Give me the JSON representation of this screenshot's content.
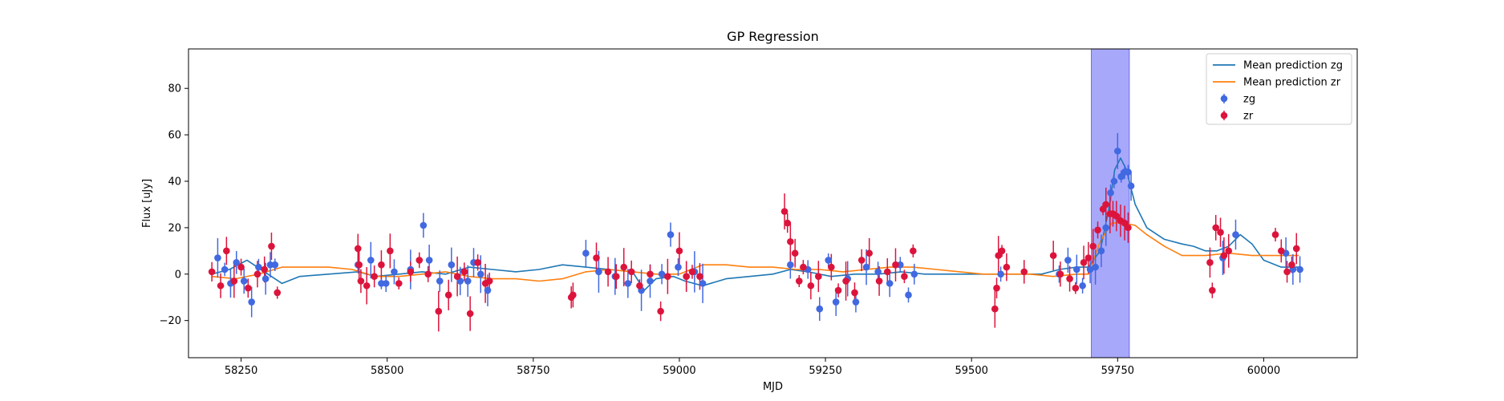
{
  "chart_data": {
    "type": "scatter",
    "title": "GP Regression",
    "xlabel": "MJD",
    "ylabel": "Flux [uJy]",
    "xlim": [
      58160,
      60160
    ],
    "ylim": [
      -36,
      97
    ],
    "xticks": [
      58250,
      58500,
      58750,
      59000,
      59250,
      59500,
      59750,
      60000
    ],
    "yticks": [
      -20,
      0,
      20,
      40,
      60,
      80
    ],
    "grid": false,
    "legend_position": "top-right",
    "highlight_span": {
      "x0": 59705,
      "x1": 59770,
      "color": "#a8a8fb"
    },
    "lines": [
      {
        "name": "Mean prediction zg",
        "color": "#1f77b4",
        "x": [
          58200,
          58230,
          58260,
          58290,
          58320,
          58350,
          58400,
          58450,
          58480,
          58520,
          58560,
          58600,
          58640,
          58680,
          58720,
          58760,
          58800,
          58840,
          58880,
          58920,
          58940,
          58960,
          58990,
          59010,
          59040,
          59080,
          59120,
          59160,
          59190,
          59220,
          59260,
          59300,
          59340,
          59380,
          59420,
          59460,
          59500,
          59540,
          59580,
          59620,
          59650,
          59680,
          59700,
          59720,
          59735,
          59745,
          59755,
          59765,
          59780,
          59800,
          59830,
          59860,
          59880,
          59900,
          59920,
          59940,
          59960,
          59980,
          60000,
          60030,
          60060
        ],
        "y": [
          0,
          2,
          6,
          1,
          -4,
          -1,
          0,
          1,
          -1,
          0,
          1,
          0,
          3,
          2,
          1,
          2,
          4,
          3,
          2,
          1,
          -7,
          -2,
          -1,
          -3,
          -5,
          -2,
          -1,
          0,
          2,
          1,
          -1,
          0,
          0,
          1,
          0,
          0,
          0,
          0,
          0,
          0,
          2,
          3,
          3,
          10,
          28,
          45,
          50,
          45,
          30,
          20,
          15,
          13,
          12,
          10,
          10,
          12,
          17,
          13,
          6,
          3,
          3
        ]
      },
      {
        "name": "Mean prediction zr",
        "color": "#ff7f0e",
        "x": [
          58200,
          58240,
          58280,
          58320,
          58360,
          58400,
          58440,
          58480,
          58520,
          58560,
          58600,
          58640,
          58680,
          58720,
          58760,
          58800,
          58840,
          58880,
          58920,
          58960,
          59000,
          59040,
          59080,
          59120,
          59160,
          59200,
          59240,
          59280,
          59320,
          59360,
          59400,
          59440,
          59480,
          59520,
          59560,
          59600,
          59640,
          59680,
          59700,
          59720,
          59740,
          59760,
          59780,
          59800,
          59830,
          59860,
          59900,
          59940,
          59980,
          60020,
          60060
        ],
        "y": [
          -1,
          -2,
          0,
          3,
          3,
          3,
          2,
          -1,
          -1,
          0,
          1,
          -1,
          -2,
          -2,
          -3,
          -2,
          1,
          2,
          1,
          0,
          0,
          4,
          4,
          3,
          3,
          2,
          2,
          1,
          2,
          3,
          3,
          2,
          1,
          0,
          0,
          0,
          -1,
          0,
          0,
          14,
          22,
          22,
          21,
          17,
          12,
          8,
          8,
          9,
          8,
          8,
          8
        ],
        "comment": ""
      }
    ],
    "series": [
      {
        "name": "zg",
        "color": "#4169e1",
        "x": [
          58210,
          58222,
          58232,
          58242,
          58255,
          58268,
          58280,
          58292,
          58300,
          58308,
          58450,
          58472,
          58490,
          58498,
          58512,
          58540,
          58562,
          58572,
          58590,
          58610,
          58625,
          58638,
          58648,
          58660,
          58672,
          58840,
          58862,
          58890,
          58912,
          58935,
          58950,
          58970,
          58985,
          58998,
          59012,
          59026,
          59040,
          59190,
          59220,
          59240,
          59255,
          59268,
          59288,
          59302,
          59320,
          59340,
          59360,
          59378,
          59392,
          59402,
          59550,
          59650,
          59665,
          59680,
          59690,
          59703,
          59712,
          59722,
          59730,
          59738,
          59744,
          59750,
          59756,
          59762,
          59768,
          59773,
          59930,
          59952,
          60038,
          60050,
          60062
        ],
        "y": [
          7,
          2,
          -4,
          5,
          -3,
          -12,
          3,
          -2,
          4,
          4,
          4,
          6,
          -4,
          -4,
          1,
          2,
          21,
          6,
          -3,
          4,
          -3,
          -3,
          5,
          0,
          -7,
          9,
          1,
          -1,
          -4,
          -7,
          -3,
          0,
          17,
          3,
          -1,
          1,
          -4,
          4,
          2,
          -15,
          6,
          -12,
          -2,
          -12,
          3,
          1,
          -4,
          4,
          -9,
          0,
          0,
          0,
          6,
          2,
          -5,
          2,
          3,
          10,
          20,
          35,
          40,
          53,
          42,
          44,
          44,
          38,
          7,
          17,
          9,
          2,
          2
        ]
      },
      {
        "name": "zr",
        "color": "#dc143c",
        "x": [
          58200,
          58215,
          58225,
          58238,
          58250,
          58262,
          58278,
          58290,
          58302,
          58312,
          58450,
          58452,
          58455,
          58465,
          58478,
          58490,
          58505,
          58520,
          58540,
          58555,
          58570,
          58588,
          58605,
          58620,
          58632,
          58642,
          58655,
          58668,
          58675,
          58815,
          58818,
          58858,
          58878,
          58892,
          58905,
          58918,
          58932,
          58950,
          58968,
          58980,
          59000,
          59012,
          59022,
          59035,
          59180,
          59185,
          59190,
          59198,
          59205,
          59212,
          59225,
          59238,
          59260,
          59272,
          59285,
          59300,
          59312,
          59325,
          59342,
          59356,
          59370,
          59385,
          59400,
          59540,
          59543,
          59546,
          59552,
          59560,
          59590,
          59640,
          59652,
          59668,
          59678,
          59692,
          59700,
          59708,
          59716,
          59725,
          59730,
          59737,
          59742,
          59748,
          59755,
          59762,
          59768,
          59908,
          59912,
          59918,
          59926,
          59932,
          59940,
          60020,
          60030,
          60040,
          60048,
          60056
        ],
        "y": [
          1,
          -5,
          10,
          -3,
          3,
          -6,
          0,
          2,
          12,
          -8,
          11,
          4,
          -3,
          -5,
          -1,
          4,
          10,
          -4,
          1,
          6,
          0,
          -16,
          -9,
          -1,
          1,
          -17,
          5,
          -4,
          -3,
          -10,
          -9,
          7,
          1,
          -1,
          3,
          1,
          -5,
          0,
          -16,
          -1,
          10,
          -1,
          1,
          -1,
          27,
          22,
          14,
          9,
          -3,
          3,
          -5,
          -1,
          3,
          -7,
          -3,
          -8,
          6,
          9,
          -3,
          1,
          4,
          -1,
          10,
          -15,
          -6,
          8,
          10,
          3,
          1,
          8,
          0,
          -2,
          -6,
          5,
          7,
          12,
          19,
          28,
          30,
          26,
          26,
          25,
          23,
          22,
          20,
          5,
          -7,
          20,
          18,
          8,
          10,
          17,
          10,
          1,
          4,
          11
        ],
        "comment": ""
      }
    ],
    "comment": ""
  }
}
